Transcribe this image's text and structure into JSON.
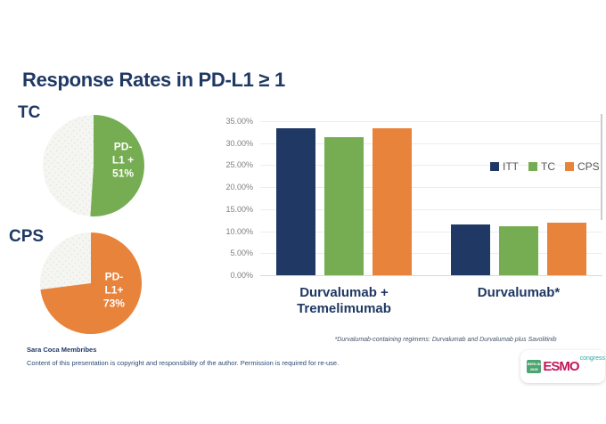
{
  "slide": {
    "title": "Response Rates in PD-L1 ≥ 1",
    "footnote": "*Durvalumab-containing regimens: Durvalumab and Durvalumab plus Savolitinib",
    "credits": {
      "name": "Sara Coca Membribes",
      "notice": "Content of this presentation is copyright and responsibility of the author. Permission is required for re-use."
    }
  },
  "colors": {
    "navy": "#1F3864",
    "green": "#76AD52",
    "orange": "#E8833C",
    "gray_slice": "#F5F5F2",
    "axis_text": "#7F7F7F",
    "gridline": "#EAECEF"
  },
  "chart_data": [
    {
      "type": "pie",
      "title": "TC",
      "slices": [
        {
          "label": "PD-L1 +",
          "value": 51,
          "color": "#76AD52"
        },
        {
          "label": "",
          "value": 49
        }
      ],
      "callout": "PD-L1 +\n51%"
    },
    {
      "type": "pie",
      "title": "CPS",
      "slices": [
        {
          "label": "PD-L1+",
          "value": 73,
          "color": "#E8833C"
        },
        {
          "label": "",
          "value": 27
        }
      ],
      "callout": "PD-L1+\n73%"
    },
    {
      "type": "bar",
      "categories": [
        "Durvalumab +\nTremelimumab",
        "Durvalumab*"
      ],
      "series": [
        {
          "name": "ITT",
          "color": "#203864",
          "values": [
            33.3,
            11.5
          ]
        },
        {
          "name": "TC",
          "color": "#76AD52",
          "values": [
            31.3,
            11.1
          ]
        },
        {
          "name": "CPS",
          "color": "#E8833C",
          "values": [
            33.3,
            12.0
          ]
        }
      ],
      "ylabels": [
        "35.00%",
        "30.00%",
        "25.00%",
        "20.00%",
        "15.00%",
        "10.00%",
        "5.00%",
        "0.00%"
      ],
      "ylim": [
        0,
        35
      ],
      "grid": true,
      "legend_position": "right-middle"
    }
  ],
  "logo": {
    "badge_line1": "BERLIN",
    "badge_line2": "2025",
    "brand": "ESMO",
    "suffix": "congress"
  }
}
